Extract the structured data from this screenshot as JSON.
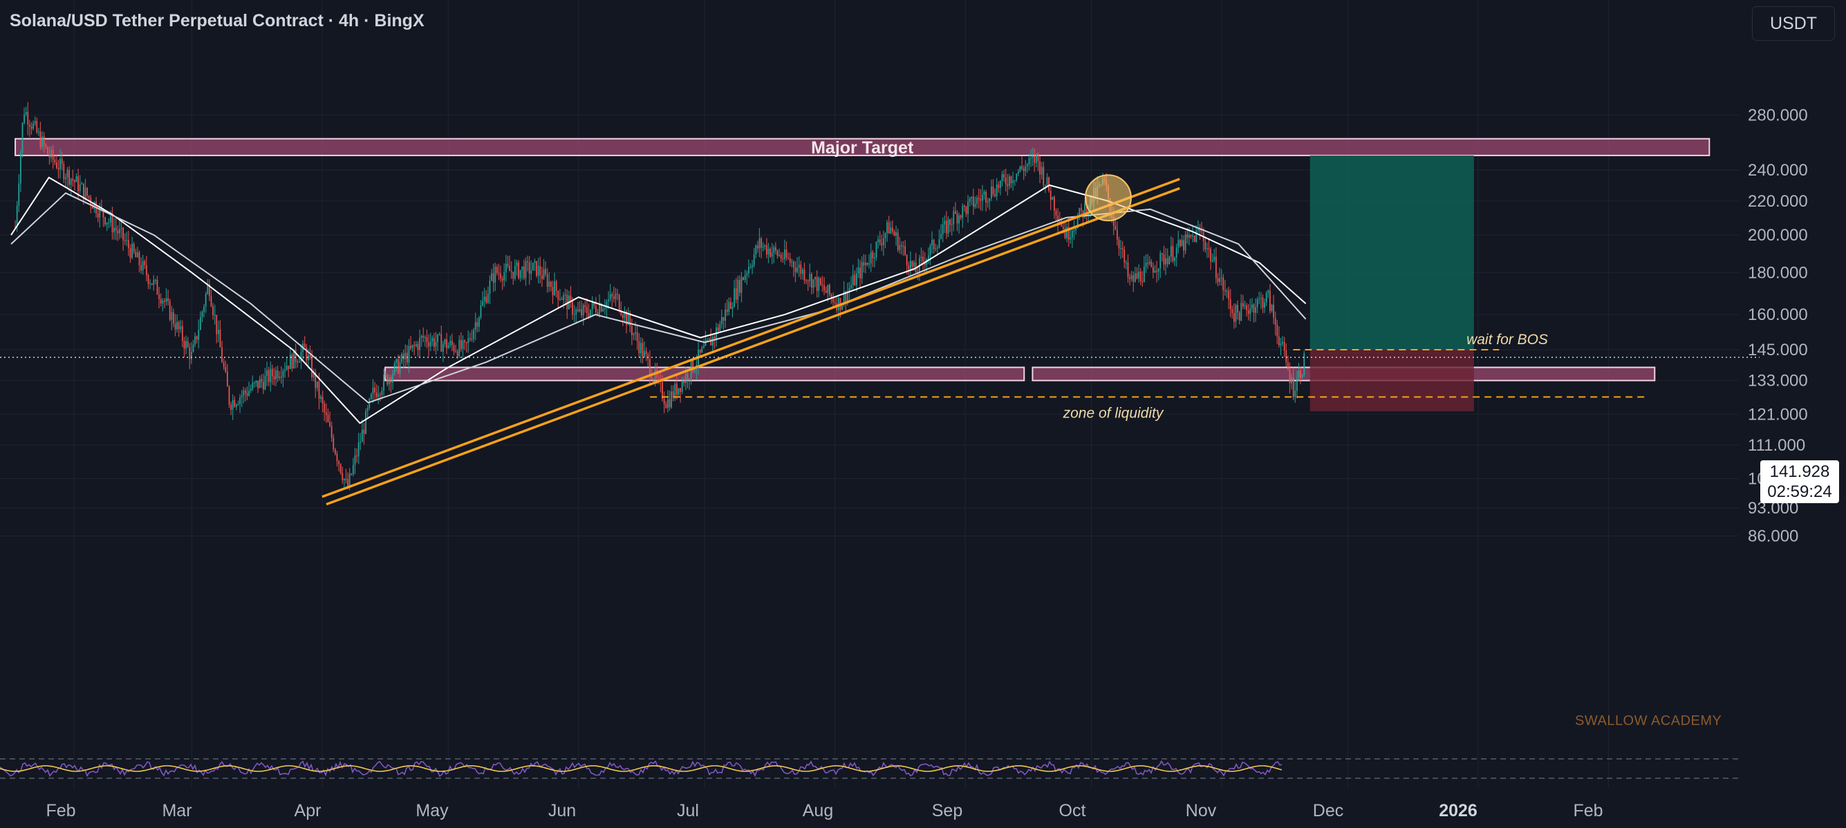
{
  "header": {
    "title": "Solana/USD Tether Perpetual Contract · 4h · BingX"
  },
  "currency_button": "USDT",
  "price_tag": {
    "price": "141.928",
    "countdown": "02:59:24"
  },
  "watermark": "SWALLOW ACADEMY",
  "annotations": {
    "major_target": "Major Target",
    "wait_for_bos": "wait for BOS",
    "zone_of_liquidity": "zone of liquidity"
  },
  "colors": {
    "background": "#131722",
    "up_candle": "#26a69a",
    "down_candle": "#ef5350",
    "trendline": "#f7a21b",
    "zone_fill": "#a04a72",
    "target_zone": "#0f5f53",
    "stop_zone": "#6b2335",
    "oscillator": "#7e57c2",
    "oscillator_signal": "#f2c94c"
  },
  "chart_data": {
    "type": "candlestick",
    "symbol": "Solana/USD Tether Perpetual Contract",
    "timeframe": "4h",
    "exchange": "BingX",
    "y_axis": {
      "scale": "log",
      "tick_labels": [
        "280.000",
        "240.000",
        "220.000",
        "200.000",
        "180.000",
        "160.000",
        "145.000",
        "133.000",
        "121.000",
        "111.000",
        "101.000",
        "93.000",
        "86.000"
      ],
      "ticks": [
        280,
        240,
        220,
        200,
        180,
        160,
        145,
        133,
        121,
        111,
        101,
        93,
        86
      ]
    },
    "x_axis": {
      "tick_labels": [
        "Feb",
        "Mar",
        "Apr",
        "May",
        "Jun",
        "Jul",
        "Aug",
        "Sep",
        "Oct",
        "Nov",
        "Dec",
        "2026",
        "Feb"
      ],
      "bold_label": "2026"
    },
    "last_price": 141.928,
    "price_path_approx": [
      {
        "date": "2025-01-18",
        "price": 205
      },
      {
        "date": "2025-01-20",
        "price": 285
      },
      {
        "date": "2025-01-26",
        "price": 250
      },
      {
        "date": "2025-02-02",
        "price": 230
      },
      {
        "date": "2025-02-12",
        "price": 200
      },
      {
        "date": "2025-02-22",
        "price": 168
      },
      {
        "date": "2025-03-01",
        "price": 142
      },
      {
        "date": "2025-03-05",
        "price": 175
      },
      {
        "date": "2025-03-10",
        "price": 125
      },
      {
        "date": "2025-03-20",
        "price": 135
      },
      {
        "date": "2025-03-28",
        "price": 145
      },
      {
        "date": "2025-04-07",
        "price": 98
      },
      {
        "date": "2025-04-13",
        "price": 128
      },
      {
        "date": "2025-04-25",
        "price": 150
      },
      {
        "date": "2025-05-05",
        "price": 145
      },
      {
        "date": "2025-05-12",
        "price": 180
      },
      {
        "date": "2025-05-22",
        "price": 182
      },
      {
        "date": "2025-06-01",
        "price": 160
      },
      {
        "date": "2025-06-10",
        "price": 168
      },
      {
        "date": "2025-06-22",
        "price": 125
      },
      {
        "date": "2025-07-03",
        "price": 150
      },
      {
        "date": "2025-07-14",
        "price": 195
      },
      {
        "date": "2025-07-22",
        "price": 185
      },
      {
        "date": "2025-08-02",
        "price": 165
      },
      {
        "date": "2025-08-14",
        "price": 205
      },
      {
        "date": "2025-08-20",
        "price": 180
      },
      {
        "date": "2025-08-29",
        "price": 210
      },
      {
        "date": "2025-09-18",
        "price": 248
      },
      {
        "date": "2025-09-25",
        "price": 200
      },
      {
        "date": "2025-10-04",
        "price": 232
      },
      {
        "date": "2025-10-10",
        "price": 175
      },
      {
        "date": "2025-10-20",
        "price": 190
      },
      {
        "date": "2025-10-27",
        "price": 202
      },
      {
        "date": "2025-11-04",
        "price": 160
      },
      {
        "date": "2025-11-12",
        "price": 168
      },
      {
        "date": "2025-11-18",
        "price": 130
      },
      {
        "date": "2025-11-21",
        "price": 141.928
      }
    ],
    "moving_averages": [
      {
        "color": "#ffffff",
        "points": [
          {
            "date": "2025-01-17",
            "price": 200
          },
          {
            "date": "2025-01-26",
            "price": 235
          },
          {
            "date": "2025-02-10",
            "price": 212
          },
          {
            "date": "2025-03-01",
            "price": 180
          },
          {
            "date": "2025-03-25",
            "price": 145
          },
          {
            "date": "2025-04-10",
            "price": 118
          },
          {
            "date": "2025-05-01",
            "price": 138
          },
          {
            "date": "2025-06-01",
            "price": 168
          },
          {
            "date": "2025-06-30",
            "price": 150
          },
          {
            "date": "2025-07-20",
            "price": 160
          },
          {
            "date": "2025-08-20",
            "price": 182
          },
          {
            "date": "2025-09-21",
            "price": 230
          },
          {
            "date": "2025-10-05",
            "price": 220
          },
          {
            "date": "2025-10-25",
            "price": 202
          },
          {
            "date": "2025-11-10",
            "price": 185
          },
          {
            "date": "2025-11-21",
            "price": 165
          }
        ]
      },
      {
        "color": "#cfd3dc",
        "points": [
          {
            "date": "2025-01-17",
            "price": 195
          },
          {
            "date": "2025-01-30",
            "price": 225
          },
          {
            "date": "2025-02-20",
            "price": 200
          },
          {
            "date": "2025-03-15",
            "price": 165
          },
          {
            "date": "2025-04-12",
            "price": 125
          },
          {
            "date": "2025-05-10",
            "price": 140
          },
          {
            "date": "2025-06-05",
            "price": 160
          },
          {
            "date": "2025-07-01",
            "price": 148
          },
          {
            "date": "2025-07-30",
            "price": 162
          },
          {
            "date": "2025-08-30",
            "price": 188
          },
          {
            "date": "2025-09-25",
            "price": 210
          },
          {
            "date": "2025-10-15",
            "price": 215
          },
          {
            "date": "2025-11-05",
            "price": 195
          },
          {
            "date": "2025-11-21",
            "price": 158
          }
        ]
      }
    ],
    "zones": [
      {
        "label": "Major Target",
        "price_low": 250,
        "price_high": 262,
        "start": "2025-01-18",
        "end": "2026-02-25"
      },
      {
        "label": "",
        "price_low": 133,
        "price_high": 138,
        "start": "2025-04-16",
        "end": "2025-09-15"
      },
      {
        "label": "",
        "price_low": 133,
        "price_high": 138,
        "start": "2025-09-17",
        "end": "2026-02-12"
      }
    ],
    "trendlines": [
      {
        "from": {
          "date": "2025-04-01",
          "price": 96
        },
        "to": {
          "date": "2025-10-22",
          "price": 234
        }
      },
      {
        "from": {
          "date": "2025-04-02",
          "price": 94
        },
        "to": {
          "date": "2025-10-22",
          "price": 228
        }
      }
    ],
    "horizontal_levels": [
      {
        "label": "wait for BOS",
        "price": 145,
        "start": "2025-11-18",
        "end": "2026-01-06",
        "style": "dashed"
      },
      {
        "label": "zone of liquidity",
        "price": 127,
        "start": "2025-06-18",
        "end": "2026-02-10",
        "style": "dashed"
      }
    ],
    "position_tool": {
      "entry": 145,
      "target": 250,
      "stop": 122,
      "start": "2025-11-22",
      "end": "2025-12-31"
    },
    "highlight_circle": {
      "date": "2025-10-05",
      "price": 222
    },
    "oscillator": {
      "upper_band": 70,
      "lower_band": 30,
      "range": [
        0,
        100
      ]
    }
  }
}
